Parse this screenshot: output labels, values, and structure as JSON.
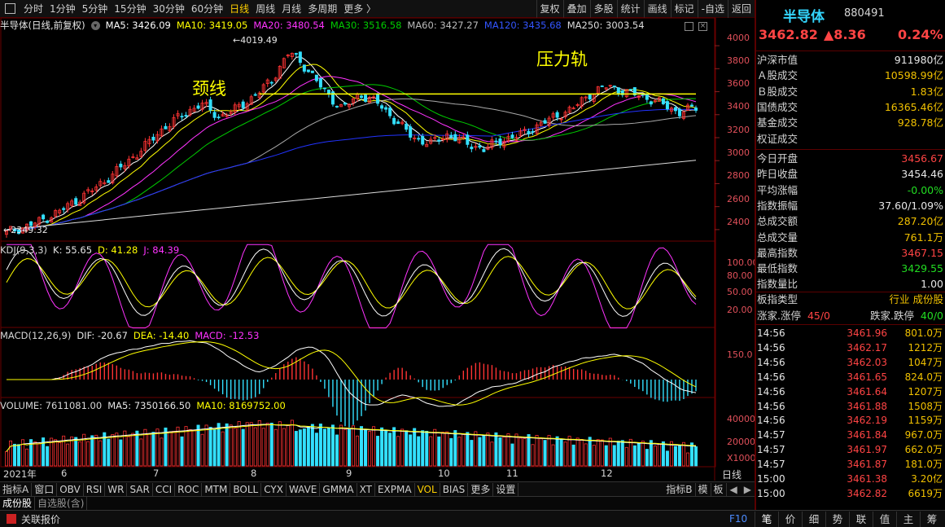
{
  "toolbar": {
    "periods": [
      "分时",
      "1分钟",
      "5分钟",
      "15分钟",
      "30分钟",
      "60分钟",
      "日线",
      "周线",
      "月线",
      "多周期",
      "更多 〉"
    ],
    "active_period": "日线",
    "right_buttons": [
      "复权",
      "叠加",
      "多股",
      "统计",
      "画线",
      "标记",
      "-自选",
      "返回"
    ]
  },
  "main_info": {
    "name": "半导体(日线,前复权)",
    "ma5": "MA5: 3426.09",
    "ma10": "MA10: 3419.05",
    "ma20": "MA20: 3480.54",
    "ma30": "MA30: 3516.58",
    "ma60": "MA60: 3427.27",
    "ma120": "MA120: 3435.68",
    "ma250": "MA250: 3003.54"
  },
  "annotations": {
    "neckline": "颈线",
    "resistance": "压力轨",
    "high_label": "4019.49",
    "low_label": "2349.32"
  },
  "kdj_info": {
    "title": "KDJ(9,3,3)",
    "k": "K: 55.65",
    "d": "D: 41.28",
    "j": "J: 84.39"
  },
  "macd_info": {
    "title": "MACD(12,26,9)",
    "dif": "DIF: -20.67",
    "dea": "DEA: -14.40",
    "macd": "MACD: -12.53"
  },
  "vol_info": {
    "title": "VOLUME: 7611081.00",
    "ma5": "MA5: 7350166.50",
    "ma10": "MA10: 8169752.00"
  },
  "price_axis": [
    "4000",
    "3800",
    "3600",
    "3400",
    "3200",
    "3000",
    "2800",
    "2600",
    "2400"
  ],
  "kdj_axis": [
    "100.00",
    "80.00",
    "50.00",
    "20.00"
  ],
  "macd_axis": [
    "150.0"
  ],
  "vol_axis": [
    "40000",
    "20000",
    "X1000"
  ],
  "date_axis": {
    "year": "2021年",
    "months": [
      "6",
      "7",
      "8",
      "9",
      "10",
      "11",
      "12"
    ],
    "period": "日线"
  },
  "indicator_tabs": [
    "指标A",
    "窗口",
    "OBV",
    "RSI",
    "WR",
    "SAR",
    "CCI",
    "ROC",
    "MTM",
    "BOLL",
    "CYX",
    "WAVE",
    "GMMA",
    "XT",
    "EXPMA",
    "VOL",
    "BIAS",
    "更多",
    "设置"
  ],
  "indicator_active": "VOL",
  "indicator_right": [
    "指标B",
    "模",
    "板"
  ],
  "bottom_tabs": [
    "成份股",
    "自选股(含)"
  ],
  "status_bar": {
    "label": "关联报价",
    "key": "F10",
    "side_tabs": [
      "笔",
      "价",
      "细",
      "势",
      "联",
      "值",
      "主",
      "筹"
    ]
  },
  "quote": {
    "name": "半导体",
    "code": "880491",
    "price": "3462.82",
    "change": "▲8.36",
    "pct": "0.24%",
    "market_rows": [
      {
        "k": "沪深市值",
        "v": "911980亿",
        "c": "#e6e6e6"
      },
      {
        "k": "Ａ股成交",
        "v": "10598.99亿",
        "c": "#f0c000"
      },
      {
        "k": "Ｂ股成交",
        "v": "1.83亿",
        "c": "#f0c000"
      },
      {
        "k": "国债成交",
        "v": "16365.46亿",
        "c": "#f0c000"
      },
      {
        "k": "基金成交",
        "v": "928.78亿",
        "c": "#f0c000"
      },
      {
        "k": "权证成交",
        "v": "",
        "c": "#f0c000"
      }
    ],
    "stat_rows": [
      {
        "k": "今日开盘",
        "v": "3456.67",
        "c": "#ff4444"
      },
      {
        "k": "昨日收盘",
        "v": "3454.46",
        "c": "#e6e6e6"
      },
      {
        "k": "平均涨幅",
        "v": "-0.00%",
        "c": "#22dd22"
      },
      {
        "k": "指数振幅",
        "v": "37.60/1.09%",
        "c": "#e6e6e6"
      },
      {
        "k": "总成交额",
        "v": "287.20亿",
        "c": "#f0c000"
      },
      {
        "k": "总成交量",
        "v": "761.1万",
        "c": "#f0c000"
      },
      {
        "k": "最高指数",
        "v": "3467.15",
        "c": "#ff4444"
      },
      {
        "k": "最低指数",
        "v": "3429.55",
        "c": "#22dd22"
      },
      {
        "k": "指数量比",
        "v": "1.00",
        "c": "#e6e6e6"
      }
    ],
    "type_label": "板指类型",
    "type_value": "行业 成份股",
    "up_label": "涨家.涨停",
    "up_value": "45/0",
    "down_label": "跌家.跌停",
    "down_value": "40/0"
  },
  "ticks": [
    {
      "t": "14:56",
      "p": "3461.96",
      "v": "801.0万"
    },
    {
      "t": "14:56",
      "p": "3462.17",
      "v": "1212万"
    },
    {
      "t": "14:56",
      "p": "3462.03",
      "v": "1047万"
    },
    {
      "t": "14:56",
      "p": "3461.65",
      "v": "824.0万"
    },
    {
      "t": "14:56",
      "p": "3461.64",
      "v": "1207万"
    },
    {
      "t": "14:56",
      "p": "3461.88",
      "v": "1508万"
    },
    {
      "t": "14:56",
      "p": "3462.19",
      "v": "1159万"
    },
    {
      "t": "14:57",
      "p": "3461.84",
      "v": "967.0万"
    },
    {
      "t": "14:57",
      "p": "3461.97",
      "v": "662.0万"
    },
    {
      "t": "14:57",
      "p": "3461.87",
      "v": "181.0万"
    },
    {
      "t": "15:00",
      "p": "3461.38",
      "v": "3.20亿"
    },
    {
      "t": "15:00",
      "p": "3462.82",
      "v": "6619万"
    }
  ],
  "chart_data": {
    "type": "candlestick",
    "price_ylim": [
      2300,
      4100
    ],
    "neckline_value": 3580,
    "high_point": 4019.49,
    "low_point": 2349.32,
    "closes_approx": [
      2380,
      2420,
      2480,
      2560,
      2660,
      2760,
      2880,
      3010,
      3150,
      3300,
      3400,
      3500,
      3380,
      3450,
      3560,
      3700,
      3950,
      3800,
      3600,
      3450,
      3580,
      3500,
      3350,
      3200,
      3150,
      3230,
      3150,
      3100,
      3180,
      3220,
      3300,
      3380,
      3450,
      3580,
      3650,
      3600,
      3560,
      3500,
      3420,
      3460
    ],
    "ma250_start": 2400,
    "ma250_end": 3003.54
  },
  "colors": {
    "up": "#ff3333",
    "down": "#33e0ff",
    "neckline": "#ffff00",
    "ma5": "#ffffff",
    "ma10": "#ffff00",
    "ma20": "#ff33ff",
    "ma30": "#00cc00",
    "ma60": "#aaaaaa",
    "ma120": "#2233ff",
    "ma250": "#dddddd"
  }
}
